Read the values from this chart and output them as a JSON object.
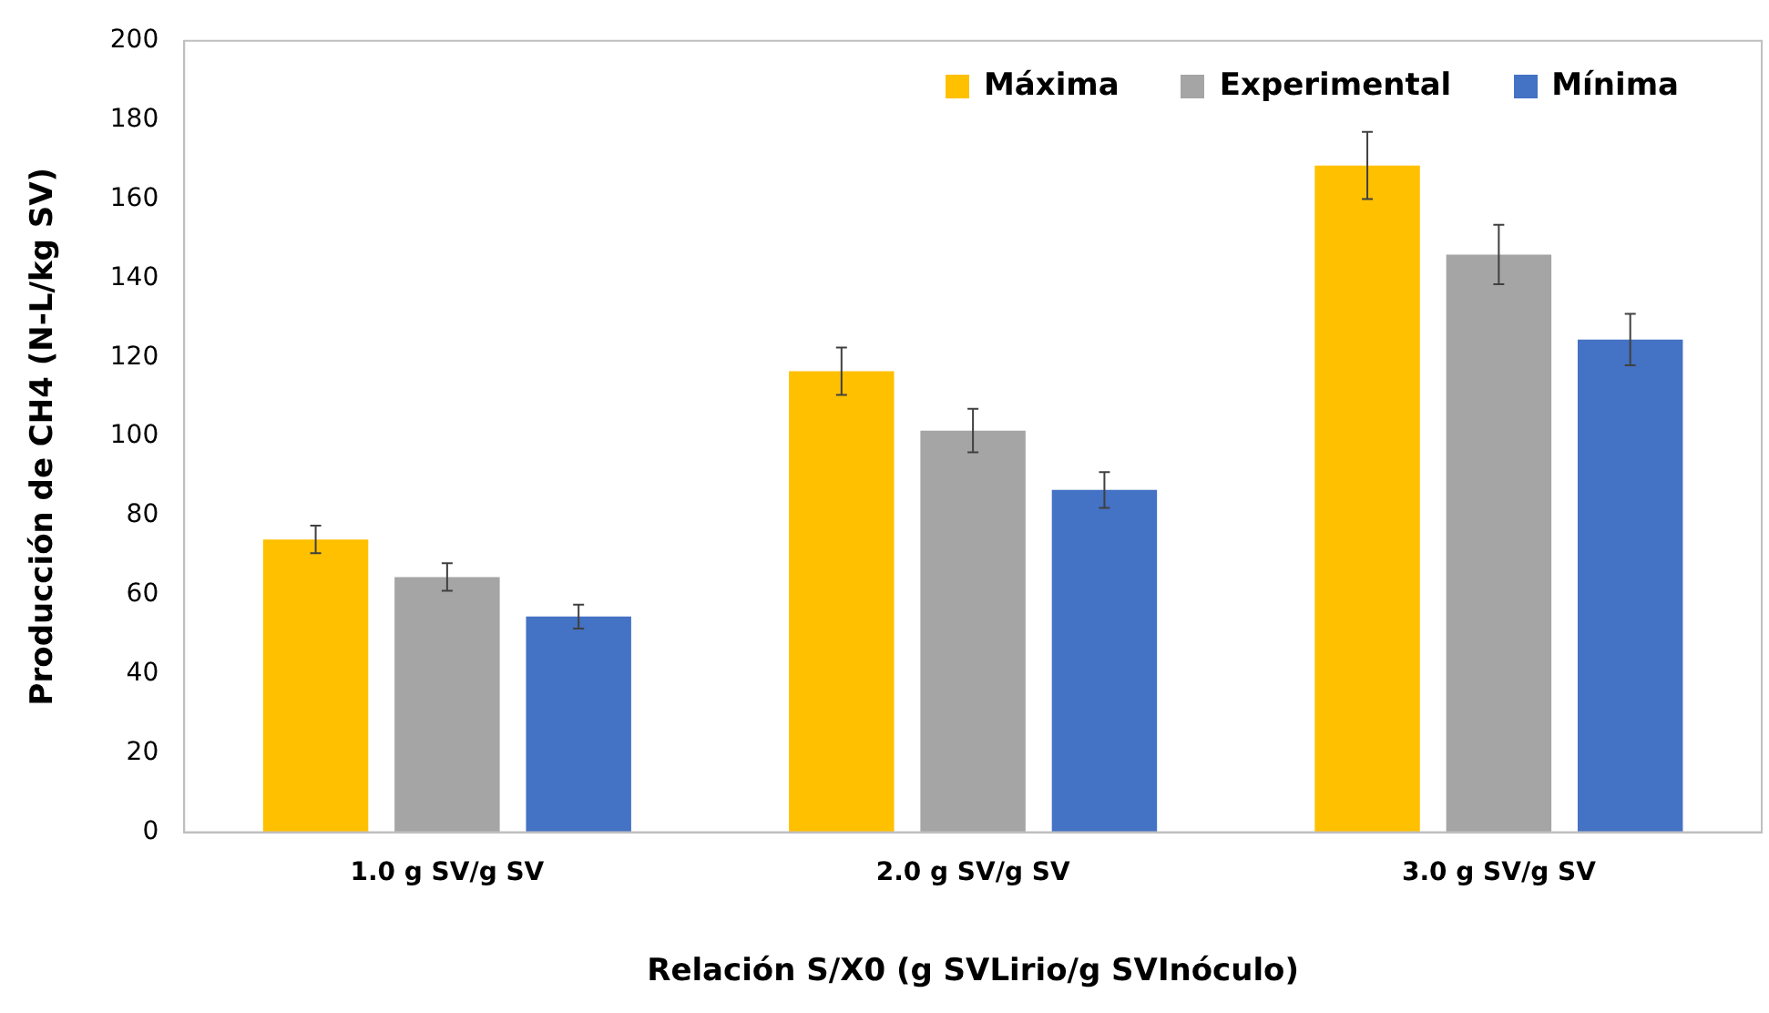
{
  "chart_data": {
    "type": "bar",
    "xlabel": "Relación S/X0 (g SVLirio/g SVInóculo)",
    "ylabel": "Producción de CH4 (N-L/kg SV)",
    "categories": [
      "1.0 g SV/g SV",
      "2.0 g SV/g SV",
      "3.0 g SV/g SV"
    ],
    "series": [
      {
        "name": "Máxima",
        "color": "#ffc000",
        "values": [
          74,
          116.5,
          168.5
        ],
        "errors": [
          3.5,
          6,
          8.5
        ]
      },
      {
        "name": "Experimental",
        "color": "#a5a5a5",
        "values": [
          64.5,
          101.5,
          146
        ],
        "errors": [
          3.5,
          5.5,
          7.5
        ]
      },
      {
        "name": "Mínima",
        "color": "#4472c4",
        "values": [
          54.5,
          86.5,
          124.5
        ],
        "errors": [
          3,
          4.5,
          6.5
        ]
      }
    ],
    "ylim": [
      0,
      200
    ],
    "yticks": [
      0,
      20,
      40,
      60,
      80,
      100,
      120,
      140,
      160,
      180,
      200
    ],
    "grid": false,
    "legend": "top right"
  }
}
